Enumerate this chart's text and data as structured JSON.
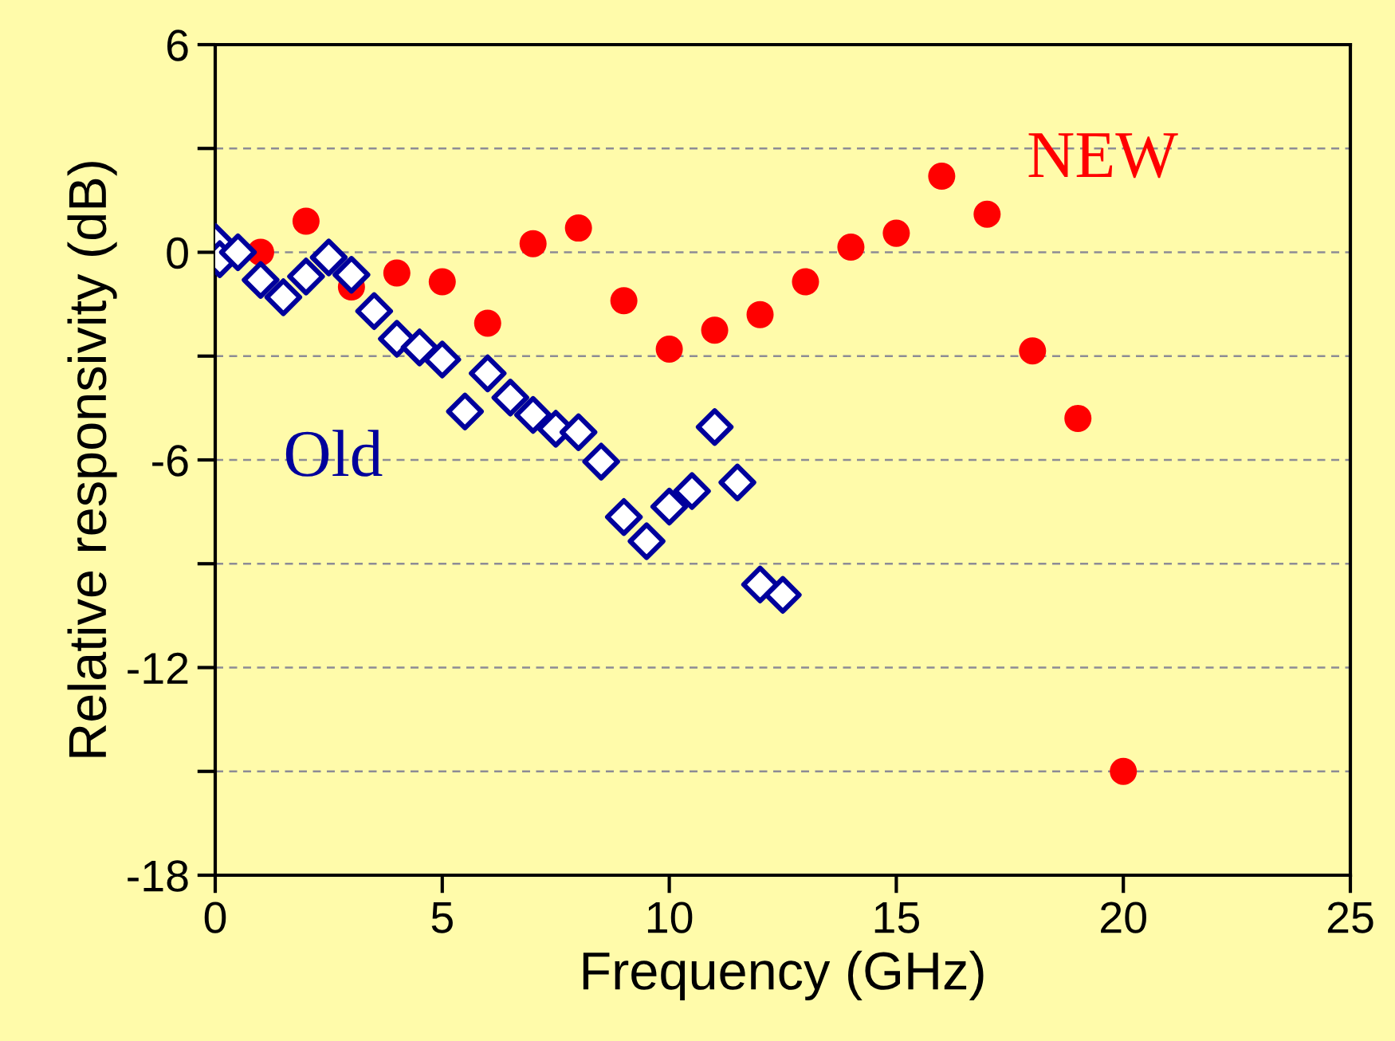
{
  "chart_data": {
    "type": "scatter",
    "xlabel": "Frequency (GHz)",
    "ylabel": "Relative responsivity (dB)",
    "xlim": [
      0,
      25
    ],
    "ylim": [
      -18,
      6
    ],
    "xticks": [
      0,
      5,
      10,
      15,
      20,
      25
    ],
    "yticks": [
      6,
      {
        "value": 3,
        "label": null
      },
      0,
      {
        "value": -3,
        "label": null
      },
      -6,
      {
        "value": -9,
        "label": null
      },
      -12,
      {
        "value": -15,
        "label": null
      },
      -18
    ],
    "grid": "y",
    "legend": false,
    "series": [
      {
        "name": "NEW",
        "color": "#ff0000",
        "marker": "circle",
        "x": [
          1,
          2,
          3,
          4,
          5,
          6,
          7,
          8,
          9,
          10,
          11,
          12,
          13,
          14,
          15,
          16,
          17,
          18,
          19,
          20
        ],
        "values": [
          0.0,
          0.9,
          -1.0,
          -0.6,
          -0.85,
          -2.05,
          0.25,
          0.7,
          -1.4,
          -2.8,
          -2.25,
          -1.8,
          -0.85,
          0.15,
          0.55,
          2.2,
          1.1,
          -2.85,
          -4.8,
          -15.0
        ]
      },
      {
        "name": "Old",
        "color": "#00009c",
        "marker": "diamond",
        "x": [
          0,
          0.1,
          0.5,
          1.0,
          1.5,
          2.0,
          2.5,
          3.0,
          3.5,
          4.0,
          4.5,
          5.0,
          5.5,
          6.0,
          6.5,
          7.0,
          7.5,
          8.0,
          8.5,
          9.0,
          9.5,
          10.0,
          10.5,
          11.0,
          11.5,
          12.0,
          12.5
        ],
        "values": [
          0.3,
          -0.2,
          0.0,
          -0.8,
          -1.3,
          -0.7,
          -0.15,
          -0.65,
          -1.7,
          -2.5,
          -2.75,
          -3.1,
          -4.6,
          -3.5,
          -4.2,
          -4.7,
          -5.1,
          -5.2,
          -6.05,
          -7.65,
          -8.35,
          -7.35,
          -6.9,
          -5.05,
          -6.65,
          -9.6,
          -9.9
        ]
      }
    ]
  }
}
